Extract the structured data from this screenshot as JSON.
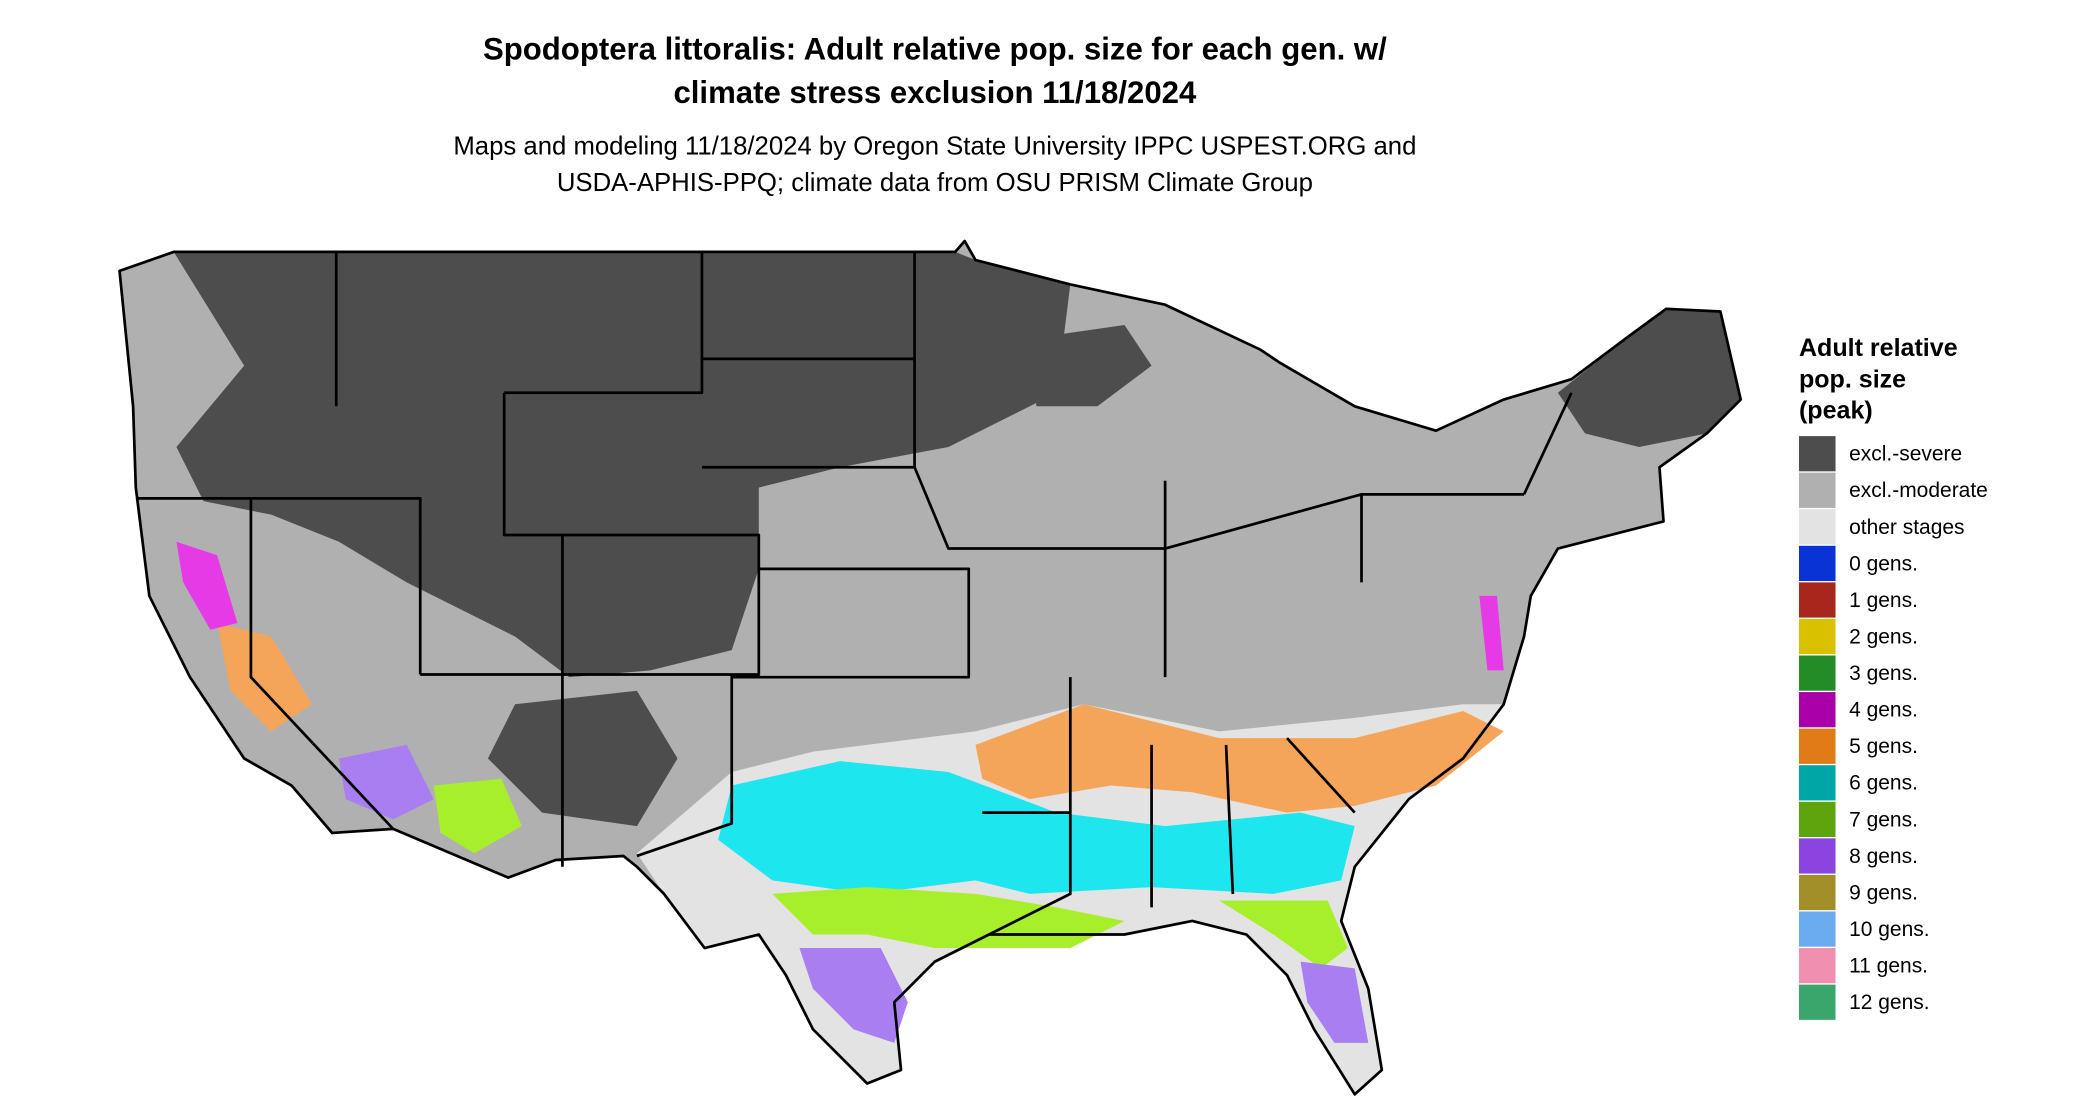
{
  "title_lines": [
    "Spodoptera littoralis: Adult relative pop. size for each gen. w/",
    "climate stress exclusion 11/18/2024"
  ],
  "subtitle_lines": [
    "Maps and modeling 11/18/2024 by Oregon State University IPPC USPEST.ORG and",
    "USDA-APHIS-PPQ; climate data from OSU PRISM Climate Group"
  ],
  "legend": {
    "title_lines": [
      "Adult relative",
      "pop. size",
      "(peak)"
    ],
    "items": [
      {
        "label": "excl.-severe",
        "color": "#4d4d4d"
      },
      {
        "label": "excl.-moderate",
        "color": "#b0b0b0"
      },
      {
        "label": "other stages",
        "color": "#e3e3e3"
      },
      {
        "label": "0 gens.",
        "color": "#0a33d6"
      },
      {
        "label": "1 gens.",
        "color": "#a8261c"
      },
      {
        "label": "2 gens.",
        "color": "#d9c100"
      },
      {
        "label": "3 gens.",
        "color": "#238b25"
      },
      {
        "label": "4 gens.",
        "color": "#a900a9"
      },
      {
        "label": "5 gens.",
        "color": "#e07b17"
      },
      {
        "label": "6 gens.",
        "color": "#00a5a5"
      },
      {
        "label": "7 gens.",
        "color": "#5ea40d"
      },
      {
        "label": "8 gens.",
        "color": "#8a45e0"
      },
      {
        "label": "9 gens.",
        "color": "#a38f2a"
      },
      {
        "label": "10 gens.",
        "color": "#6aabf0"
      },
      {
        "label": "11 gens.",
        "color": "#f08fb0"
      },
      {
        "label": "12 gens.",
        "color": "#3aa66b"
      }
    ]
  }
}
